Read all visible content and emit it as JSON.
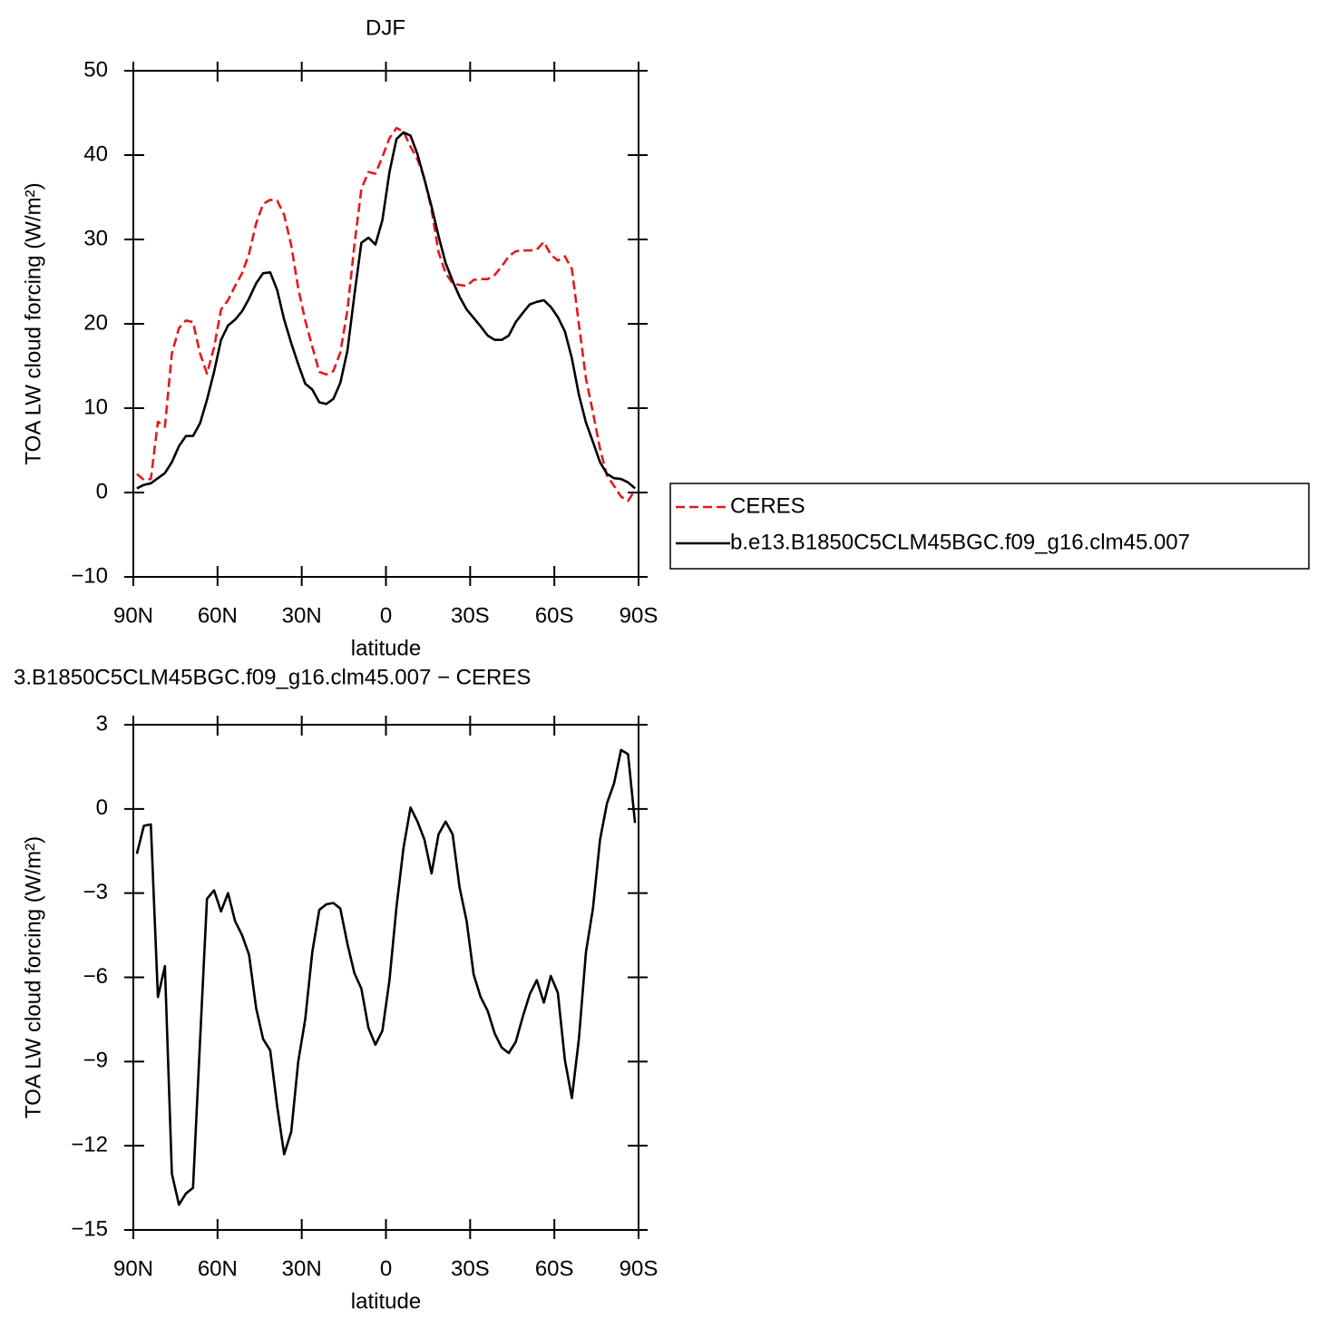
{
  "chart_data": [
    {
      "type": "line",
      "title": "DJF",
      "xlabel": "latitude",
      "ylabel": "TOA LW cloud forcing (W/m²)",
      "x": [
        88.75,
        86.25,
        83.75,
        81.25,
        78.75,
        76.25,
        73.75,
        71.25,
        68.75,
        66.25,
        63.75,
        61.25,
        58.75,
        56.25,
        53.75,
        51.25,
        48.75,
        46.25,
        43.75,
        41.25,
        38.75,
        36.25,
        33.75,
        31.25,
        28.75,
        26.25,
        23.75,
        21.25,
        18.75,
        16.25,
        13.75,
        11.25,
        8.75,
        6.25,
        3.75,
        1.25,
        -1.25,
        -3.75,
        -6.25,
        -8.75,
        -11.25,
        -13.75,
        -16.25,
        -18.75,
        -21.25,
        -23.75,
        -26.25,
        -28.75,
        -31.25,
        -33.75,
        -36.25,
        -38.75,
        -41.25,
        -43.75,
        -46.25,
        -48.75,
        -51.25,
        -53.75,
        -56.25,
        -58.75,
        -61.25,
        -63.75,
        -66.25,
        -68.75,
        -71.25,
        -73.75,
        -76.25,
        -78.75,
        -81.25,
        -83.75,
        -86.25,
        -88.75
      ],
      "series": [
        {
          "name": "CERES",
          "color": "#e31a1c",
          "style": "dashed",
          "values": [
            2.2,
            1.5,
            1.6,
            8.4,
            7.8,
            16.5,
            19.5,
            20.4,
            20.2,
            16.5,
            14.1,
            17.2,
            21.7,
            22.8,
            24.5,
            26.0,
            28.3,
            31.9,
            34.2,
            34.7,
            34.6,
            32.9,
            29.3,
            24.2,
            20.4,
            17.3,
            14.3,
            14.0,
            14.4,
            16.6,
            21.6,
            29.3,
            36.0,
            38.0,
            37.8,
            39.8,
            42.0,
            43.2,
            42.8,
            41.0,
            39.5,
            37.2,
            33.5,
            28.5,
            26.0,
            24.8,
            24.6,
            24.5,
            25.2,
            25.3,
            25.3,
            25.8,
            26.8,
            28.0,
            28.6,
            28.7,
            28.7,
            28.8,
            29.7,
            28.2,
            27.5,
            28.0,
            26.5,
            20.0,
            13.5,
            9.5,
            5.2,
            2.0,
            0.8,
            -0.5,
            -1.0,
            0.3
          ]
        },
        {
          "name": "b.e13.B1850C5CLM45BGC.f09_g16.clm45.007",
          "color": "#000000",
          "style": "solid",
          "values": [
            0.5,
            0.9,
            1.1,
            1.7,
            2.3,
            3.6,
            5.5,
            6.7,
            6.7,
            8.2,
            11.0,
            14.3,
            18.1,
            19.8,
            20.5,
            21.5,
            23.0,
            24.8,
            26.0,
            26.1,
            24.0,
            20.5,
            17.7,
            15.2,
            12.9,
            12.2,
            10.7,
            10.5,
            11.1,
            13.0,
            16.8,
            23.4,
            29.6,
            30.2,
            29.4,
            32.3,
            38.0,
            41.9,
            42.7,
            42.3,
            40.1,
            37.1,
            33.9,
            30.4,
            27.2,
            25.1,
            23.2,
            21.7,
            20.7,
            19.7,
            18.6,
            18.1,
            18.1,
            18.6,
            20.2,
            21.3,
            22.3,
            22.6,
            22.8,
            22.0,
            20.8,
            19.1,
            15.9,
            11.6,
            8.3,
            6.0,
            3.6,
            2.2,
            1.7,
            1.6,
            1.2,
            0.5
          ]
        }
      ],
      "xlim": [
        90,
        -90
      ],
      "xticks": [
        {
          "value": 90,
          "label": "90N"
        },
        {
          "value": 60,
          "label": "60N"
        },
        {
          "value": 30,
          "label": "30N"
        },
        0,
        {
          "value": -30,
          "label": "30S"
        },
        {
          "value": -60,
          "label": "60S"
        },
        {
          "value": -90,
          "label": "90S"
        }
      ],
      "ylim": [
        -10,
        50
      ],
      "yticks": [
        {
          "value": -10,
          "label": "−10"
        },
        0,
        10,
        20,
        30,
        40,
        50
      ],
      "legend": "right"
    },
    {
      "type": "line",
      "title": "3.B1850C5CLM45BGC.f09_g16.clm45.007 − CERES",
      "xlabel": "latitude",
      "ylabel": "TOA LW cloud forcing (W/m²)",
      "x": [
        88.75,
        86.25,
        83.75,
        81.25,
        78.75,
        76.25,
        73.75,
        71.25,
        68.75,
        66.25,
        63.75,
        61.25,
        58.75,
        56.25,
        53.75,
        51.25,
        48.75,
        46.25,
        43.75,
        41.25,
        38.75,
        36.25,
        33.75,
        31.25,
        28.75,
        26.25,
        23.75,
        21.25,
        18.75,
        16.25,
        13.75,
        11.25,
        8.75,
        6.25,
        3.75,
        1.25,
        -1.25,
        -3.75,
        -6.25,
        -8.75,
        -11.25,
        -13.75,
        -16.25,
        -18.75,
        -21.25,
        -23.75,
        -26.25,
        -28.75,
        -31.25,
        -33.75,
        -36.25,
        -38.75,
        -41.25,
        -43.75,
        -46.25,
        -48.75,
        -51.25,
        -53.75,
        -56.25,
        -58.75,
        -61.25,
        -63.75,
        -66.25,
        -68.75,
        -71.25,
        -73.75,
        -76.25,
        -78.75,
        -81.25,
        -83.75,
        -86.25,
        -88.75
      ],
      "series": [
        {
          "color": "#000000",
          "style": "solid",
          "values": [
            -1.6,
            -0.6,
            -0.55,
            -6.7,
            -5.6,
            -13.0,
            -14.1,
            -13.7,
            -13.5,
            -8.3,
            -3.2,
            -2.9,
            -3.65,
            -3.0,
            -4.0,
            -4.5,
            -5.2,
            -7.1,
            -8.2,
            -8.6,
            -10.6,
            -12.3,
            -11.5,
            -9.0,
            -7.5,
            -5.1,
            -3.6,
            -3.4,
            -3.35,
            -3.55,
            -4.8,
            -5.85,
            -6.4,
            -7.8,
            -8.4,
            -7.9,
            -6.1,
            -3.5,
            -1.4,
            0.05,
            -0.45,
            -1.1,
            -2.3,
            -0.9,
            -0.45,
            -0.9,
            -2.8,
            -4.0,
            -5.9,
            -6.7,
            -7.2,
            -8.0,
            -8.5,
            -8.7,
            -8.3,
            -7.4,
            -6.6,
            -6.1,
            -6.9,
            -5.95,
            -6.55,
            -8.95,
            -10.3,
            -8.2,
            -5.1,
            -3.55,
            -1.1,
            0.2,
            0.9,
            2.1,
            1.95,
            -0.5
          ]
        }
      ],
      "xlim": [
        90,
        -90
      ],
      "xticks": [
        {
          "value": 90,
          "label": "90N"
        },
        {
          "value": 60,
          "label": "60N"
        },
        {
          "value": 30,
          "label": "30N"
        },
        0,
        {
          "value": -30,
          "label": "30S"
        },
        {
          "value": -60,
          "label": "60S"
        },
        {
          "value": -90,
          "label": "90S"
        }
      ],
      "ylim": [
        -15,
        3
      ],
      "yticks": [
        {
          "value": -15,
          "label": "−15"
        },
        {
          "value": -12,
          "label": "−12"
        },
        {
          "value": -9,
          "label": "−9"
        },
        {
          "value": -6,
          "label": "−6"
        },
        {
          "value": -3,
          "label": "−3"
        },
        0,
        3
      ]
    }
  ]
}
